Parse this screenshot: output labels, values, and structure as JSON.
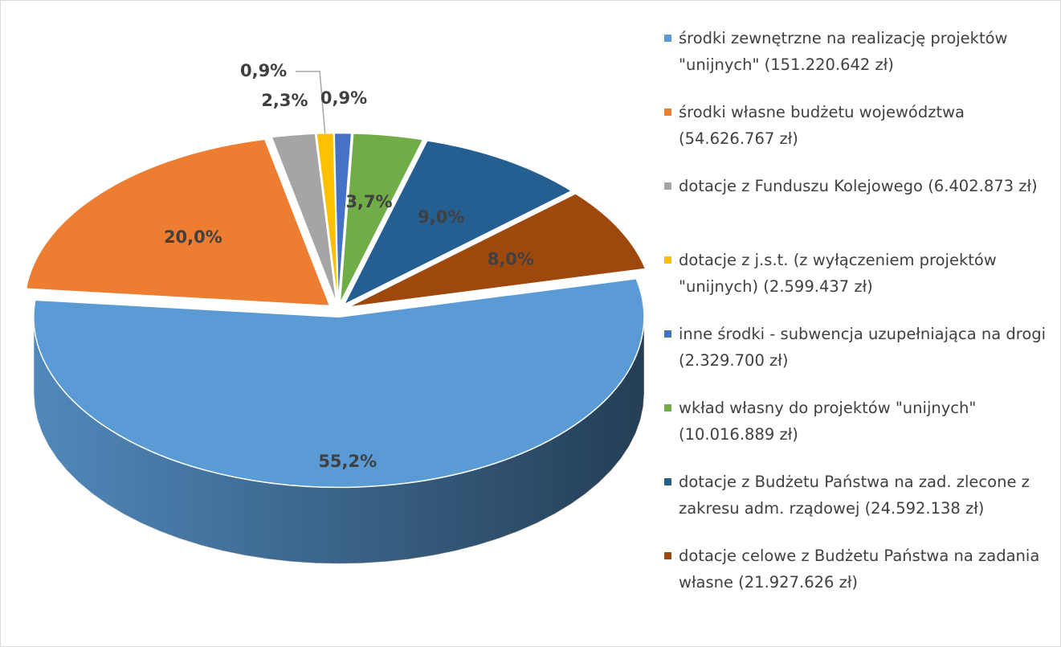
{
  "chart_data": {
    "type": "pie",
    "categories": [
      "środki zewnętrzne na realizację projektów \"unijnych\" (151.220.642 zł)",
      "środki własne budżetu województwa (54.626.767 zł)",
      "dotacje z Funduszu Kolejowego (6.402.873 zł)",
      "dotacje z j.s.t. (z wyłączeniem projektów \"unijnych) (2.599.437 zł)",
      "inne środki - subwencja uzupełniająca na drogi (2.329.700 zł)",
      "wkład własny do projektów \"unijnych\" (10.016.889 zł)",
      "dotacje z Budżetu Państwa na zad. zlecone z zakresu adm. rządowej (24.592.138 zł)",
      "dotacje celowe z Budżetu Państwa na zadania własne (21.927.626 zł)"
    ],
    "values": [
      55.2,
      20.0,
      2.3,
      0.9,
      0.9,
      3.7,
      9.0,
      8.0
    ],
    "value_labels": [
      "55,2%",
      "20,0%",
      "2,3%",
      "0,9%",
      "0,9%",
      "3,7%",
      "9,0%",
      "8,0%"
    ],
    "colors": [
      "#5b9bd5",
      "#ed7d31",
      "#a5a5a5",
      "#ffc000",
      "#4472c4",
      "#70ad47",
      "#255e91",
      "#9e480e"
    ],
    "legend": "right"
  }
}
